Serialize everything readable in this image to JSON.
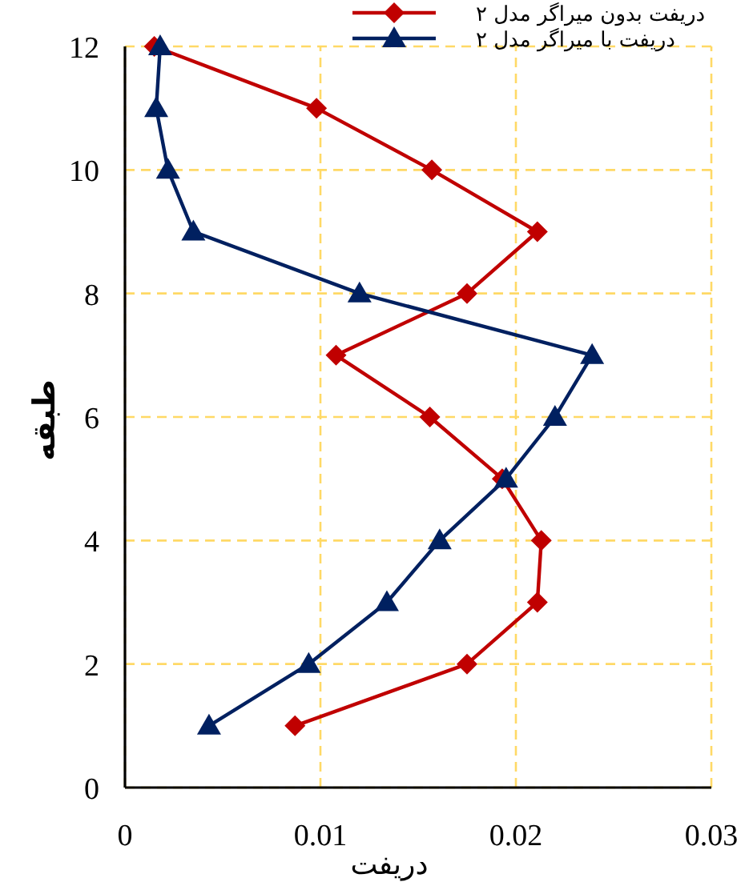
{
  "chart_data": {
    "type": "line",
    "xlabel": "دریفت",
    "ylabel": "طبقه",
    "xlim": [
      0,
      0.03
    ],
    "ylim": [
      0,
      12
    ],
    "xticks": [
      0,
      0.01,
      0.02,
      0.03
    ],
    "yticks": [
      0,
      2,
      4,
      6,
      8,
      10,
      12
    ],
    "grid": true,
    "legend": "top right",
    "series": [
      {
        "name": "دریفت بدون میراگر مدل ۲",
        "color": "#c00000",
        "marker": "diamond",
        "x": [
          0.0087,
          0.0175,
          0.0211,
          0.0213,
          0.0193,
          0.0156,
          0.0108,
          0.0175,
          0.0211,
          0.0157,
          0.0098,
          0.0015
        ],
        "values": [
          1,
          2,
          3,
          4,
          5,
          6,
          7,
          8,
          9,
          10,
          11,
          12
        ]
      },
      {
        "name": "دریفت با میراگر مدل ۲",
        "color": "#002060",
        "marker": "triangle",
        "x": [
          0.0043,
          0.0094,
          0.0134,
          0.0161,
          0.0195,
          0.022,
          0.0239,
          0.012,
          0.0035,
          0.0022,
          0.0016,
          0.0018
        ],
        "values": [
          1,
          2,
          3,
          4,
          5,
          6,
          7,
          8,
          9,
          10,
          11,
          12
        ]
      }
    ]
  }
}
